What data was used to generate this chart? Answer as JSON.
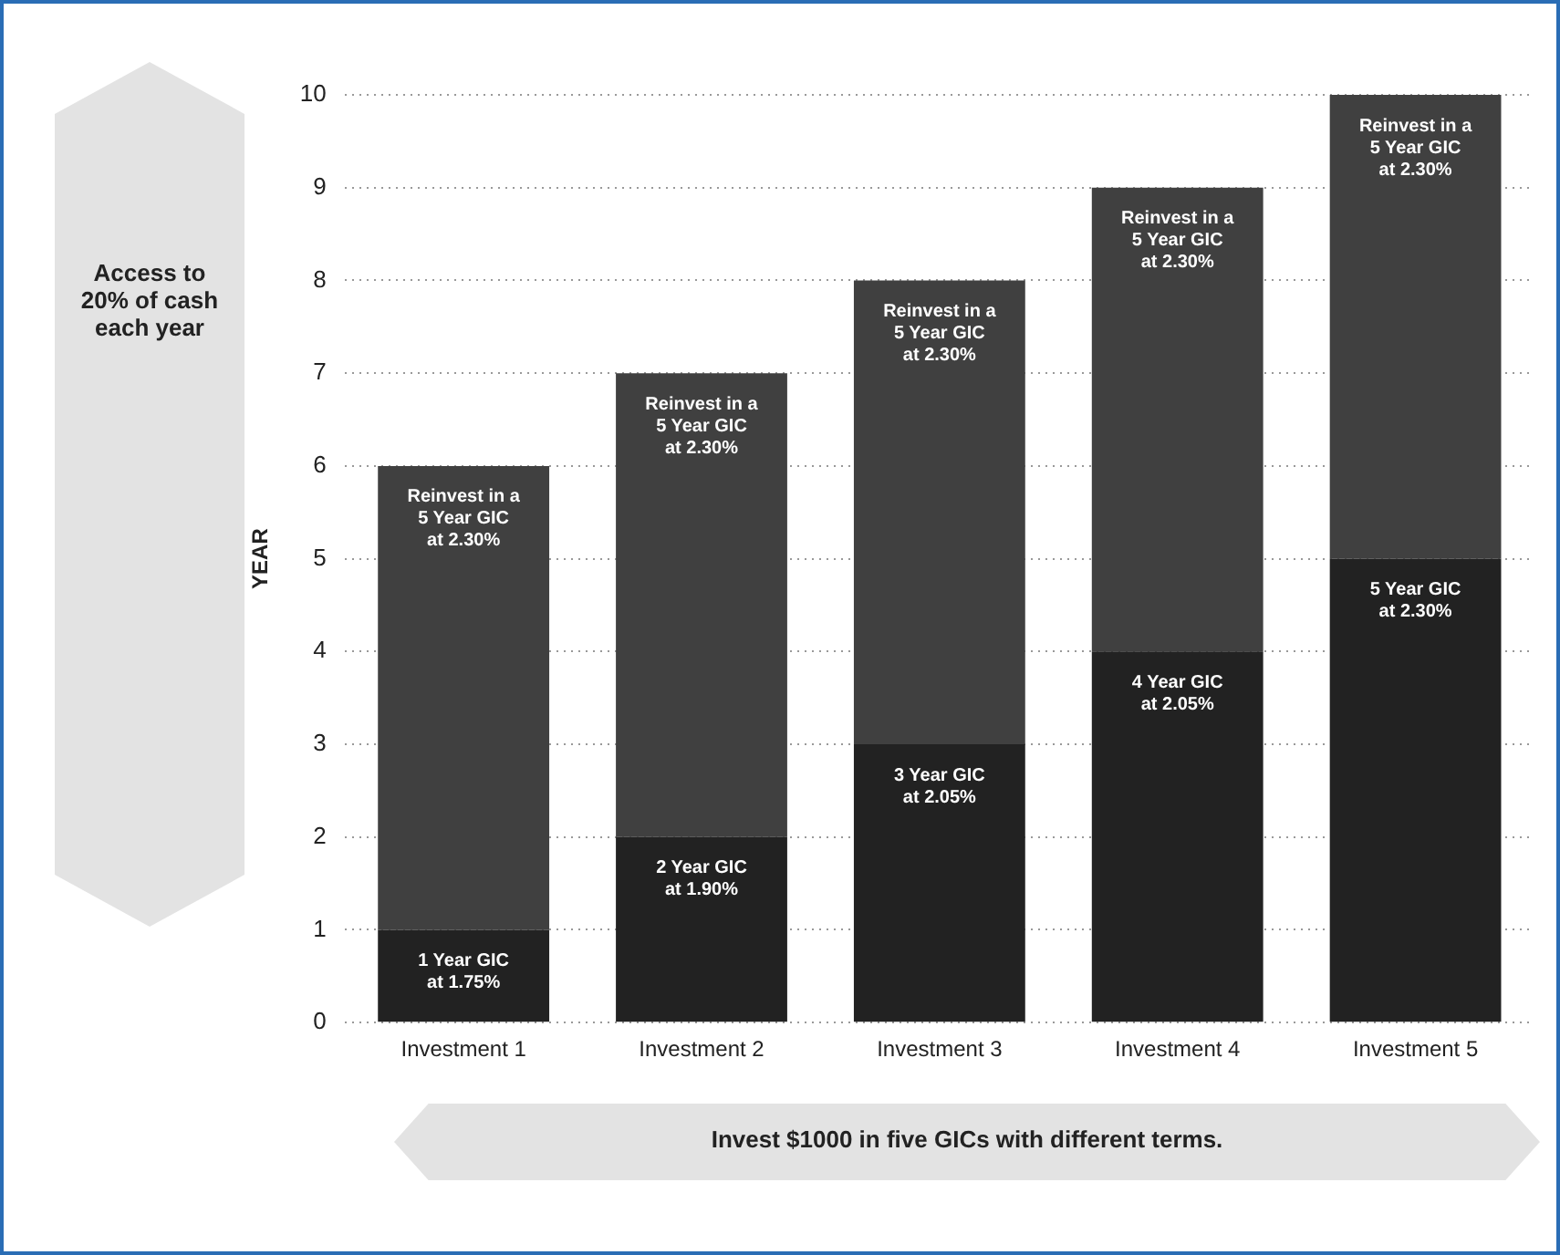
{
  "chart_data": {
    "type": "bar",
    "stacked": true,
    "ylabel": "YEAR",
    "categories": [
      "Investment 1",
      "Investment 2",
      "Investment 3",
      "Investment 4",
      "Investment 5"
    ],
    "series": [
      {
        "color": "#222222",
        "values": [
          1,
          2,
          3,
          4,
          5
        ]
      },
      {
        "color": "#404040",
        "values": [
          5,
          5,
          5,
          5,
          5
        ]
      }
    ],
    "ylim": [
      0,
      10
    ],
    "yticks": [
      0,
      1,
      2,
      3,
      4,
      5,
      6,
      7,
      8,
      9,
      10
    ],
    "grid": "y",
    "legend": false,
    "annotations": [
      "Access to\n20% of cash\neach year",
      "Invest $1000 in five GICs with different terms.",
      "1 Year GIC\nat 1.75%",
      "2 Year GIC\nat 1.90%",
      "3 Year GIC\nat 2.05%",
      "4 Year GIC\nat 2.05%",
      "5 Year GIC\nat 2.30%",
      "Reinvest in a\n5 Year GIC\nat 2.30%",
      "Reinvest in a\n5 Year GIC\nat 2.30%",
      "Reinvest in a\n5 Year GIC\nat 2.30%",
      "Reinvest in a\n5 Year GIC\nat 2.30%",
      "Reinvest in a\n5 Year GIC\nat 2.30%"
    ]
  }
}
